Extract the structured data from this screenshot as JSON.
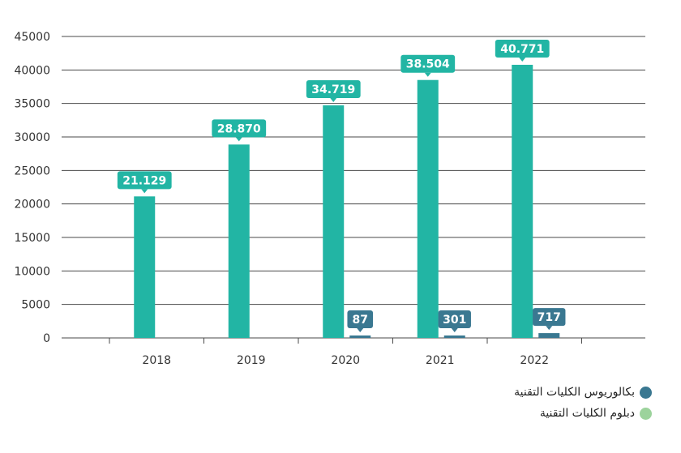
{
  "chart_data": {
    "type": "bar",
    "categories": [
      "2018",
      "2019",
      "2020",
      "2021",
      "2022"
    ],
    "ylim": [
      0,
      45000
    ],
    "yticks": [
      "0",
      "5000",
      "10000",
      "15000",
      "20000",
      "25000",
      "30000",
      "35000",
      "40000",
      "45000"
    ],
    "series": [
      {
        "name": "دبلوم الكليات التقنية",
        "color": "#22b5a4",
        "values": [
          21129,
          28870,
          34719,
          38504,
          40771
        ],
        "labels": [
          "21.129",
          "28.870",
          "34.719",
          "38.504",
          "40.771"
        ]
      },
      {
        "name": "بكالوريوس الكليات التقنية",
        "color": "#3a7891",
        "values": [
          0,
          0,
          87,
          301,
          717
        ],
        "labels": [
          "",
          "",
          "87",
          "301",
          "717"
        ]
      }
    ],
    "legend": [
      {
        "name": "بكالوريوس الكليات التقنية",
        "color": "#3a7891"
      },
      {
        "name": "دبلوم الكليات التقنية",
        "color": "#9cd39c"
      }
    ],
    "grid": true,
    "legend_position": "bottom-right"
  }
}
